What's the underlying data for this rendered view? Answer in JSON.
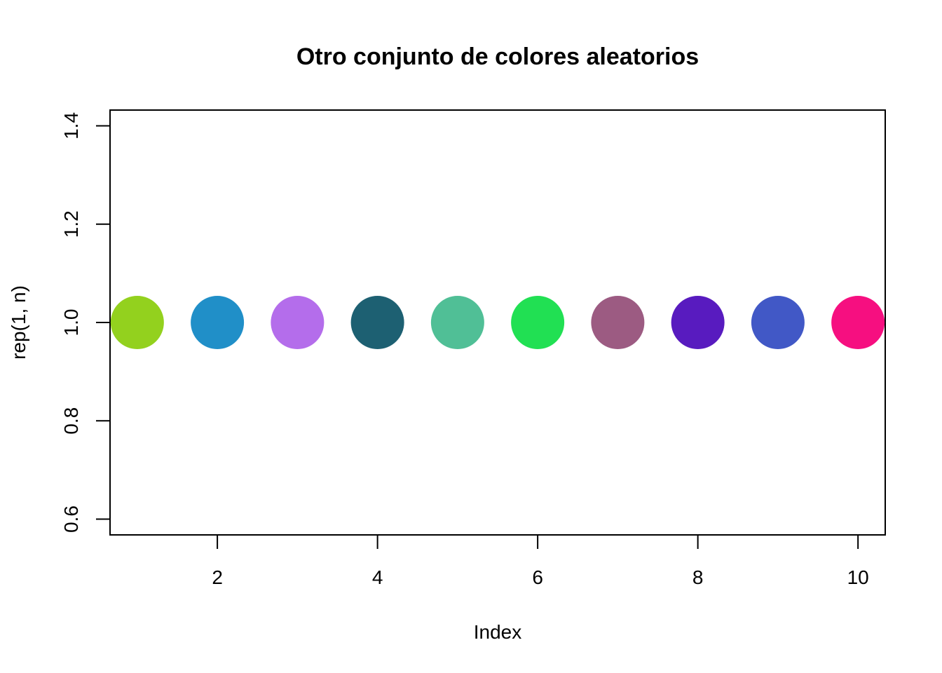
{
  "chart_data": {
    "type": "scatter",
    "title": "Otro conjunto de colores aleatorios",
    "xlabel": "Index",
    "ylabel": "rep(1, n)",
    "xlim": [
      0.66,
      10.34
    ],
    "ylim": [
      0.568,
      1.432
    ],
    "x_ticks": [
      2,
      4,
      6,
      8,
      10
    ],
    "x_tick_labels": [
      "2",
      "4",
      "6",
      "8",
      "10"
    ],
    "y_ticks": [
      0.6,
      0.8,
      1.0,
      1.2,
      1.4
    ],
    "y_tick_labels": [
      "0.6",
      "0.8",
      "1.0",
      "1.2",
      "1.4"
    ],
    "grid": false,
    "legend": "none",
    "points": [
      {
        "x": 1,
        "y": 1.0,
        "color": "#93D11E"
      },
      {
        "x": 2,
        "y": 1.0,
        "color": "#208FC8"
      },
      {
        "x": 3,
        "y": 1.0,
        "color": "#B46DEB"
      },
      {
        "x": 4,
        "y": 1.0,
        "color": "#1D6072"
      },
      {
        "x": 5,
        "y": 1.0,
        "color": "#50BF96"
      },
      {
        "x": 6,
        "y": 1.0,
        "color": "#21E053"
      },
      {
        "x": 7,
        "y": 1.0,
        "color": "#9C5B82"
      },
      {
        "x": 8,
        "y": 1.0,
        "color": "#581BBF"
      },
      {
        "x": 9,
        "y": 1.0,
        "color": "#4158C6"
      },
      {
        "x": 10,
        "y": 1.0,
        "color": "#F60F80"
      }
    ]
  }
}
